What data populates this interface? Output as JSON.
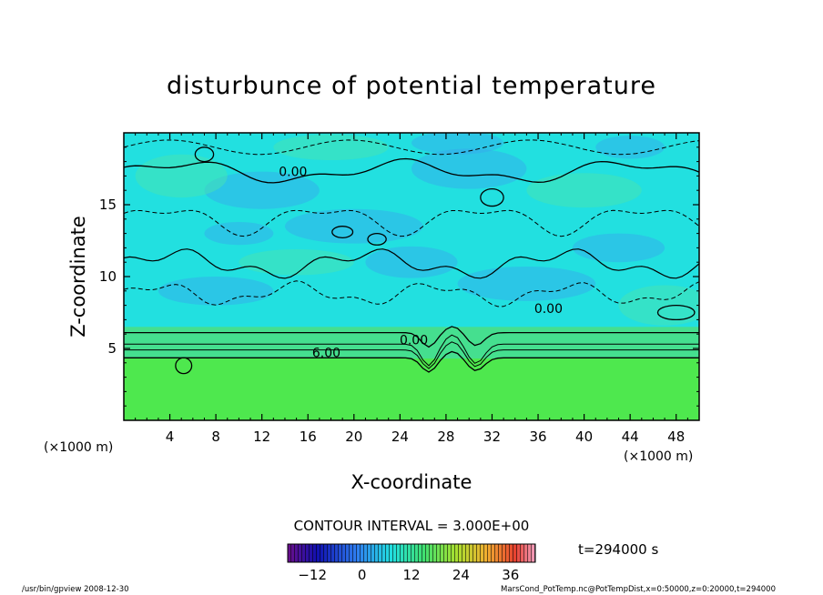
{
  "chart_data": {
    "type": "heatmap",
    "title": "disturbunce of potential temperature",
    "xlabel": "X-coordinate",
    "ylabel": "Z-coordinate",
    "x_unit_left": "(×1000 m)",
    "x_unit_right": "(×1000 m)",
    "xlim": [
      0,
      50
    ],
    "ylim": [
      0,
      20
    ],
    "x_ticks": [
      4,
      8,
      12,
      16,
      20,
      24,
      28,
      32,
      36,
      40,
      44,
      48
    ],
    "y_ticks": [
      5,
      10,
      15
    ],
    "contour_interval_text": "CONTOUR INTERVAL = 3.000E+00",
    "contour_labels": [
      {
        "text": "0.00",
        "x": 14.7,
        "z": 17.3
      },
      {
        "text": "0.00",
        "x": 36.9,
        "z": 7.8
      },
      {
        "text": "0.00",
        "x": 25.2,
        "z": 5.6
      },
      {
        "text": "6.00",
        "x": 17.6,
        "z": 4.7
      }
    ],
    "time_label": "t=294000 s",
    "colorbar": {
      "min": -18,
      "max": 42,
      "tick_values": [
        -12,
        0,
        12,
        24,
        36
      ],
      "tick_labels": [
        "−12",
        "0",
        "12",
        "24",
        "36"
      ]
    },
    "color_levels": [
      {
        "z_from": 0,
        "z_to": 4.3,
        "value": 9
      },
      {
        "z_from": 4.3,
        "z_to": 6.5,
        "value": 6
      },
      {
        "z_from": 6.5,
        "z_to": 20,
        "value": 0
      }
    ]
  },
  "footer": {
    "left_text": "/usr/bin/gpview   2008-12-30",
    "right_text": "MarsCond_PotTemp.nc@PotTempDist,x=0:50000,z=0:20000,t=294000"
  },
  "colors": {
    "background": "#ffffff",
    "frame": "#000000",
    "lower_layer": "#4ee84e",
    "transition": "#45df8f",
    "upper_field": "#22e0e0",
    "dark_patch": "#38a6ee",
    "light_patch": "#47e3b0"
  }
}
